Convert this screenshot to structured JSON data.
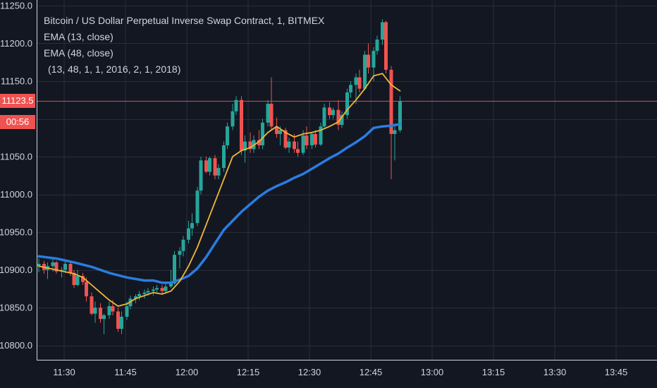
{
  "chart_data": {
    "type": "candlestick",
    "title": "Bitcoin / US Dollar Perpetual Inverse Swap Contract, 1, BITMEX",
    "legend": [
      "EMA (13, close)",
      "EMA (48, close)"
    ],
    "parameters": "(13, 48, 1, 1, 2016, 2, 1, 2018)",
    "x_ticks": [
      "11:30",
      "11:45",
      "12:00",
      "12:15",
      "12:30",
      "12:45",
      "13:00",
      "13:15",
      "13:30",
      "13:45"
    ],
    "y_ticks": [
      "11250.0",
      "11200.0",
      "11150.0",
      "11100.0",
      "11050.0",
      "11000.0",
      "10950.0",
      "10900.0",
      "10850.0",
      "10800.0"
    ],
    "ylim": [
      10790,
      11255
    ],
    "grid": true,
    "last_price": "11123.5",
    "countdown": "00:56",
    "colors": {
      "background": "#131722",
      "up": "#26a69a",
      "down": "#ef5350",
      "ema13": "#f0b838",
      "ema48": "#2a7de1",
      "grid": "#2a2e39",
      "axis_text": "#d1d4dc"
    },
    "ema13": [
      [
        0,
        10905
      ],
      [
        10,
        10900
      ],
      [
        20,
        10895
      ],
      [
        25,
        10890
      ],
      [
        30,
        10880
      ],
      [
        35,
        10870
      ],
      [
        40,
        10860
      ],
      [
        45,
        10852
      ],
      [
        50,
        10855
      ],
      [
        55,
        10862
      ],
      [
        60,
        10866
      ],
      [
        65,
        10870
      ],
      [
        70,
        10868
      ],
      [
        75,
        10872
      ],
      [
        80,
        10885
      ],
      [
        85,
        10905
      ],
      [
        90,
        10930
      ],
      [
        95,
        10960
      ],
      [
        100,
        10990
      ],
      [
        105,
        11020
      ],
      [
        110,
        11050
      ],
      [
        115,
        11058
      ],
      [
        120,
        11062
      ],
      [
        125,
        11070
      ],
      [
        130,
        11082
      ],
      [
        135,
        11090
      ],
      [
        140,
        11082
      ],
      [
        145,
        11076
      ],
      [
        150,
        11080
      ],
      [
        155,
        11082
      ],
      [
        160,
        11085
      ],
      [
        165,
        11090
      ],
      [
        170,
        11096
      ],
      [
        175,
        11112
      ],
      [
        180,
        11125
      ],
      [
        185,
        11140
      ],
      [
        190,
        11157
      ],
      [
        195,
        11160
      ],
      [
        200,
        11145
      ],
      [
        205,
        11137
      ]
    ],
    "ema48": [
      [
        0,
        10918
      ],
      [
        10,
        10915
      ],
      [
        20,
        10910
      ],
      [
        30,
        10904
      ],
      [
        40,
        10896
      ],
      [
        50,
        10890
      ],
      [
        60,
        10886
      ],
      [
        65,
        10886
      ],
      [
        70,
        10883
      ],
      [
        75,
        10883
      ],
      [
        80,
        10887
      ],
      [
        85,
        10892
      ],
      [
        90,
        10902
      ],
      [
        95,
        10917
      ],
      [
        100,
        10935
      ],
      [
        105,
        10953
      ],
      [
        110,
        10965
      ],
      [
        115,
        10977
      ],
      [
        120,
        10987
      ],
      [
        125,
        10997
      ],
      [
        130,
        11005
      ],
      [
        135,
        11011
      ],
      [
        140,
        11016
      ],
      [
        145,
        11022
      ],
      [
        150,
        11027
      ],
      [
        155,
        11034
      ],
      [
        160,
        11041
      ],
      [
        165,
        11048
      ],
      [
        170,
        11054
      ],
      [
        175,
        11062
      ],
      [
        180,
        11069
      ],
      [
        185,
        11077
      ],
      [
        190,
        11088
      ],
      [
        195,
        11090
      ],
      [
        200,
        11091
      ],
      [
        205,
        11093
      ]
    ],
    "candles": [
      [
        0,
        10905,
        10915,
        10897,
        10908
      ],
      [
        3,
        10908,
        10912,
        10895,
        10900
      ],
      [
        5,
        10900,
        10910,
        10888,
        10905
      ],
      [
        8,
        10905,
        10915,
        10898,
        10910
      ],
      [
        10,
        10910,
        10912,
        10895,
        10898
      ],
      [
        13,
        10898,
        10904,
        10890,
        10900
      ],
      [
        15,
        10900,
        10912,
        10896,
        10908
      ],
      [
        18,
        10908,
        10910,
        10892,
        10896
      ],
      [
        20,
        10896,
        10900,
        10876,
        10880
      ],
      [
        22,
        10880,
        10900,
        10878,
        10892
      ],
      [
        25,
        10892,
        10896,
        10880,
        10884
      ],
      [
        27,
        10884,
        10890,
        10858,
        10865
      ],
      [
        30,
        10865,
        10870,
        10840,
        10842
      ],
      [
        32,
        10842,
        10858,
        10830,
        10850
      ],
      [
        35,
        10850,
        10856,
        10830,
        10835
      ],
      [
        37,
        10835,
        10842,
        10815,
        10840
      ],
      [
        40,
        10840,
        10858,
        10835,
        10852
      ],
      [
        42,
        10852,
        10860,
        10840,
        10845
      ],
      [
        45,
        10845,
        10850,
        10818,
        10822
      ],
      [
        47,
        10822,
        10845,
        10815,
        10838
      ],
      [
        50,
        10838,
        10858,
        10834,
        10852
      ],
      [
        52,
        10852,
        10866,
        10848,
        10862
      ],
      [
        55,
        10862,
        10868,
        10856,
        10865
      ],
      [
        57,
        10865,
        10872,
        10860,
        10868
      ],
      [
        60,
        10868,
        10874,
        10862,
        10870
      ],
      [
        62,
        10870,
        10876,
        10866,
        10872
      ],
      [
        65,
        10872,
        10878,
        10866,
        10874
      ],
      [
        67,
        10874,
        10880,
        10870,
        10876
      ],
      [
        70,
        10876,
        10880,
        10868,
        10872
      ],
      [
        72,
        10872,
        10882,
        10870,
        10878
      ],
      [
        75,
        10878,
        10900,
        10876,
        10882
      ],
      [
        77,
        10882,
        10925,
        10880,
        10920
      ],
      [
        80,
        10920,
        10930,
        10902,
        10925
      ],
      [
        82,
        10925,
        10945,
        10918,
        10940
      ],
      [
        85,
        10940,
        10965,
        10935,
        10955
      ],
      [
        87,
        10955,
        10975,
        10945,
        10962
      ],
      [
        90,
        10962,
        11010,
        10958,
        11005
      ],
      [
        92,
        11005,
        11050,
        11000,
        11045
      ],
      [
        95,
        11045,
        11050,
        11028,
        11030
      ],
      [
        97,
        11030,
        11050,
        11025,
        11048
      ],
      [
        100,
        11048,
        11052,
        11020,
        11025
      ],
      [
        102,
        11025,
        11040,
        11020,
        11035
      ],
      [
        105,
        11035,
        11070,
        11030,
        11065
      ],
      [
        107,
        11065,
        11095,
        11060,
        11090
      ],
      [
        110,
        11090,
        11120,
        11085,
        11110
      ],
      [
        112,
        11110,
        11130,
        11105,
        11125
      ],
      [
        115,
        11125,
        11130,
        11052,
        11058
      ],
      [
        117,
        11058,
        11078,
        11042,
        11070
      ],
      [
        120,
        11070,
        11082,
        11055,
        11060
      ],
      [
        122,
        11060,
        11078,
        11055,
        11072
      ],
      [
        125,
        11072,
        11085,
        11060,
        11065
      ],
      [
        127,
        11065,
        11100,
        11060,
        11095
      ],
      [
        130,
        11095,
        11125,
        11090,
        11120
      ],
      [
        132,
        11120,
        11155,
        11085,
        11090
      ],
      [
        135,
        11090,
        11102,
        11075,
        11080
      ],
      [
        137,
        11080,
        11090,
        11065,
        11085
      ],
      [
        140,
        11085,
        11088,
        11060,
        11062
      ],
      [
        142,
        11062,
        11075,
        11055,
        11070
      ],
      [
        145,
        11070,
        11080,
        11055,
        11060
      ],
      [
        147,
        11060,
        11070,
        11050,
        11055
      ],
      [
        150,
        11055,
        11085,
        11052,
        11078
      ],
      [
        152,
        11078,
        11090,
        11060,
        11065
      ],
      [
        155,
        11065,
        11082,
        11060,
        11080
      ],
      [
        157,
        11080,
        11085,
        11062,
        11066
      ],
      [
        160,
        11066,
        11095,
        11064,
        11090
      ],
      [
        162,
        11090,
        11120,
        11088,
        11115
      ],
      [
        165,
        11115,
        11122,
        11100,
        11105
      ],
      [
        167,
        11105,
        11115,
        11100,
        11112
      ],
      [
        170,
        11112,
        11125,
        11085,
        11092
      ],
      [
        172,
        11092,
        11110,
        11088,
        11105
      ],
      [
        175,
        11105,
        11140,
        11100,
        11135
      ],
      [
        177,
        11135,
        11150,
        11128,
        11145
      ],
      [
        180,
        11145,
        11160,
        11120,
        11155
      ],
      [
        182,
        11155,
        11165,
        11135,
        11140
      ],
      [
        185,
        11140,
        11190,
        11138,
        11185
      ],
      [
        187,
        11185,
        11200,
        11160,
        11168
      ],
      [
        190,
        11168,
        11195,
        11150,
        11190
      ],
      [
        192,
        11190,
        11210,
        11185,
        11205
      ],
      [
        195,
        11205,
        11232,
        11198,
        11228
      ],
      [
        197,
        11228,
        11230,
        11160,
        11165
      ],
      [
        200,
        11165,
        11170,
        11020,
        11080
      ],
      [
        202,
        11080,
        11090,
        11045,
        11085
      ],
      [
        205,
        11085,
        11130,
        11082,
        11123
      ]
    ]
  }
}
